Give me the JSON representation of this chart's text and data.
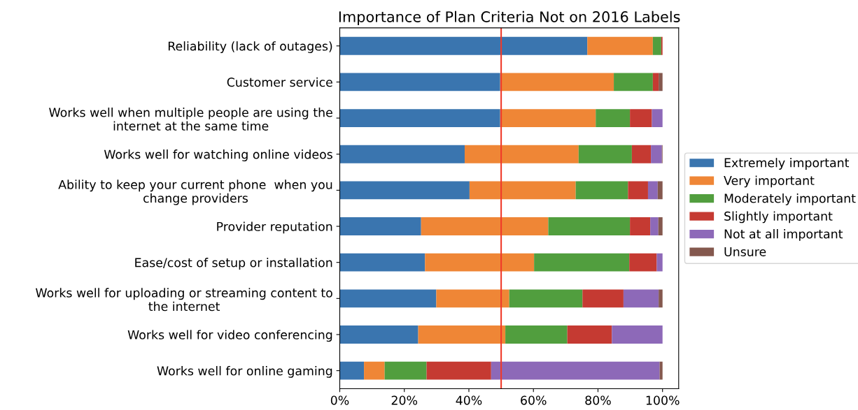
{
  "chart_data": {
    "type": "bar",
    "orientation": "horizontal",
    "stacked": true,
    "title": "Importance of Plan Criteria Not on 2016 Labels",
    "categories": [
      "Reliability (lack of outages)",
      "Customer service",
      "Works well when multiple people are using the\ninternet at the same time",
      "Works well for watching online videos",
      "Ability to keep your current phone  when you\nchange providers",
      "Provider reputation",
      "Ease/cost of setup or installation",
      "Works well for uploading or streaming content to\nthe internet",
      "Works well for video conferencing",
      "Works well for online gaming"
    ],
    "series": [
      {
        "name": "Extremely important",
        "color": "#3a75af",
        "values": [
          76.7,
          49.7,
          49.7,
          38.7,
          40.2,
          25.2,
          26.4,
          29.9,
          24.3,
          7.5
        ]
      },
      {
        "name": "Very important",
        "color": "#ef8636",
        "values": [
          20.3,
          35.2,
          29.6,
          35.3,
          32.9,
          39.4,
          33.8,
          22.6,
          27.0,
          6.4
        ]
      },
      {
        "name": "Moderately important",
        "color": "#519e3e",
        "values": [
          2.6,
          12.1,
          10.6,
          16.5,
          16.2,
          25.3,
          29.5,
          22.7,
          19.2,
          13.0
        ]
      },
      {
        "name": "Slightly important",
        "color": "#c53a32",
        "values": [
          0.4,
          1.8,
          6.8,
          5.9,
          6.2,
          6.3,
          8.5,
          12.7,
          13.8,
          20.0
        ]
      },
      {
        "name": "Not at all important",
        "color": "#8d69b8",
        "values": [
          0,
          0,
          3.3,
          3.4,
          3.0,
          2.5,
          1.8,
          10.9,
          15.7,
          52.2
        ]
      },
      {
        "name": "Unsure",
        "color": "#84584e",
        "values": [
          0,
          1.2,
          0,
          0.2,
          1.5,
          1.3,
          0,
          1.2,
          0,
          0.9
        ]
      }
    ],
    "xlim": [
      0,
      105
    ],
    "xticks": [
      {
        "value": 0,
        "label": "0%"
      },
      {
        "value": 20,
        "label": "20%"
      },
      {
        "value": 40,
        "label": "40%"
      },
      {
        "value": 60,
        "label": "60%"
      },
      {
        "value": 80,
        "label": "80%"
      },
      {
        "value": 100,
        "label": "100%"
      }
    ],
    "ref_lines": [
      {
        "axis": "x",
        "value": 50,
        "color": "#f03a2a",
        "line_style": "solid"
      }
    ],
    "legend": "right",
    "grid": false
  }
}
